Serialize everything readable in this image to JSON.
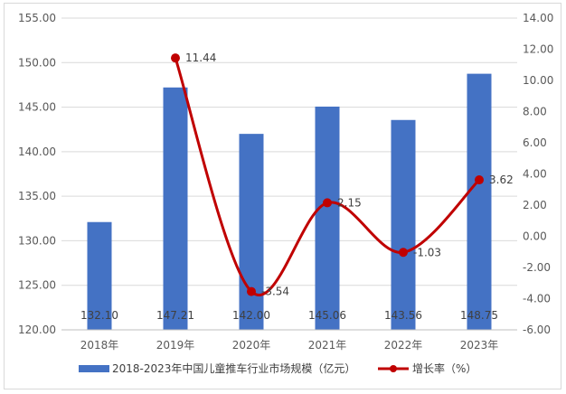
{
  "chart_data": {
    "type": "bar",
    "categories": [
      "2018年",
      "2019年",
      "2020年",
      "2021年",
      "2022年",
      "2023年"
    ],
    "series": [
      {
        "name": "2018-2023年中国儿童推车行业市场规模（亿元）",
        "type": "bar",
        "axis": "left",
        "color": "#4472C4",
        "values": [
          132.1,
          147.21,
          142.0,
          145.06,
          143.56,
          148.75
        ],
        "labels": [
          "132.10",
          "147.21",
          "142.00",
          "145.06",
          "143.56",
          "148.75"
        ]
      },
      {
        "name": "增长率（%）",
        "type": "line",
        "axis": "right",
        "color": "#C00000",
        "values": [
          null,
          11.44,
          -3.54,
          2.15,
          -1.03,
          3.62
        ],
        "labels": [
          "",
          "11.44",
          "-3.54",
          "2.15",
          "-1.03",
          "3.62"
        ]
      }
    ],
    "y_left": {
      "min": 120,
      "max": 155,
      "step": 5,
      "ticks": [
        "120.00",
        "125.00",
        "130.00",
        "135.00",
        "140.00",
        "145.00",
        "150.00",
        "155.00"
      ]
    },
    "y_right": {
      "min": -6,
      "max": 14,
      "step": 2,
      "ticks": [
        "-6.00",
        "-4.00",
        "-2.00",
        "0.00",
        "2.00",
        "4.00",
        "6.00",
        "8.00",
        "10.00",
        "12.00",
        "14.00"
      ]
    },
    "grid": true,
    "legend_position": "bottom"
  }
}
